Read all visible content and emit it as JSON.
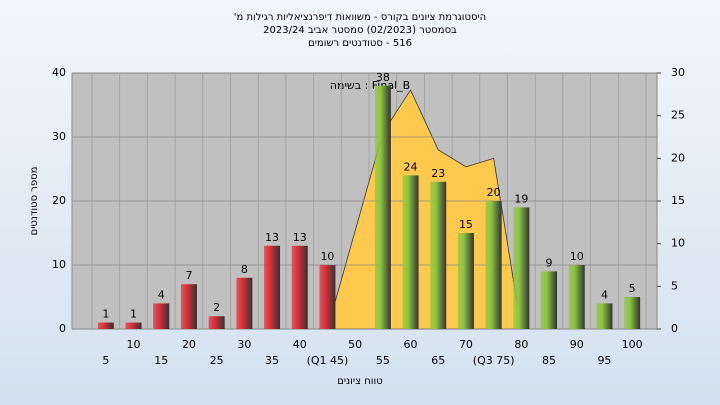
{
  "chart_data": {
    "type": "bar",
    "title": [
      "היסטוגרמת ציונים בקורס - משוואות דיפרנציאליות רגילות מ'",
      "בסמסטר (02/2023) סמסטר אביב 2023/24",
      "516 - סטודנטים רשומים"
    ],
    "annotation": "בשימה : Final_B",
    "xlabel": "טווח ציונים",
    "ylabel": "מספר סטודנטים",
    "categories": [
      "5",
      "10",
      "15",
      "20",
      "25",
      "30",
      "35",
      "40",
      "(Q1 45)",
      "50",
      "55",
      "60",
      "65",
      "70",
      "(Q3 75)",
      "80",
      "85",
      "90",
      "95",
      "100"
    ],
    "values": [
      1,
      1,
      4,
      7,
      2,
      8,
      13,
      13,
      10,
      null,
      38,
      24,
      23,
      15,
      20,
      19,
      9,
      10,
      4,
      5
    ],
    "colors": [
      "#e0303a",
      "#e0303a",
      "#e0303a",
      "#e0303a",
      "#e0303a",
      "#e0303a",
      "#e0303a",
      "#e0303a",
      "#e0303a",
      "#e0303a",
      "#8cc63f",
      "#8cc63f",
      "#8cc63f",
      "#8cc63f",
      "#8cc63f",
      "#8cc63f",
      "#8cc63f",
      "#8cc63f",
      "#8cc63f",
      "#8cc63f"
    ],
    "area": {
      "color": "#ffc94d",
      "axis": "y2",
      "x": [
        45,
        55,
        60,
        65,
        70,
        75,
        80
      ],
      "values": [
        0,
        23,
        28,
        21,
        19,
        20,
        0
      ]
    },
    "ylim": [
      0,
      40
    ],
    "yticks": [
      0,
      10,
      20,
      30,
      40
    ],
    "y2lim": [
      0,
      30
    ],
    "y2ticks": [
      0,
      5,
      10,
      15,
      20,
      25,
      30
    ],
    "grid": true
  }
}
